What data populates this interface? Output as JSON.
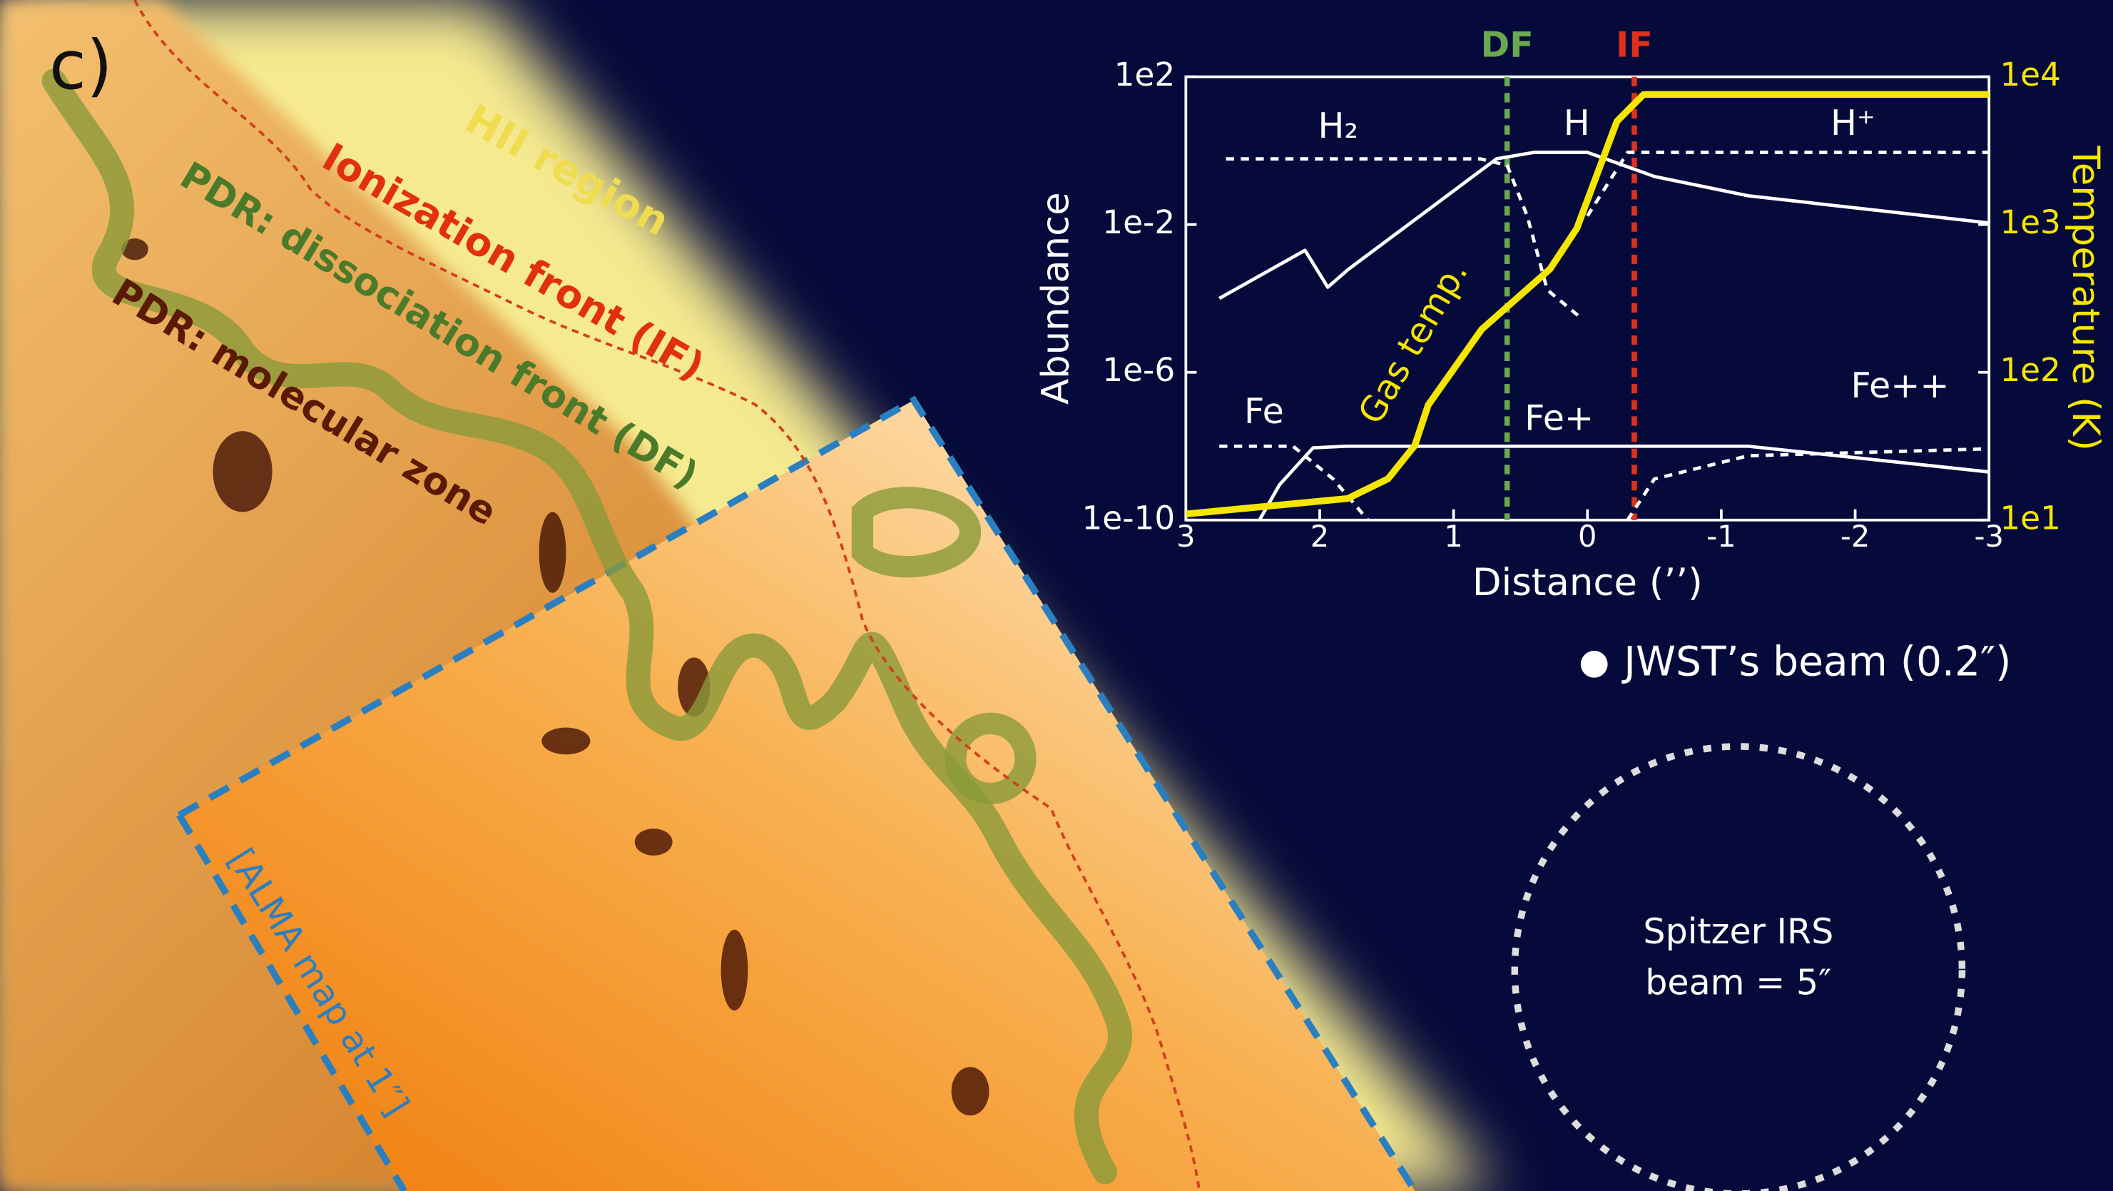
{
  "chart_data": {
    "type": "line",
    "x_label": "Distance (’’)",
    "y_label": "Abundance",
    "y2_label": "Temperature (K)",
    "xlim": [
      3,
      -3
    ],
    "xticks": [
      3,
      2,
      1,
      0,
      -1,
      -2,
      -3
    ],
    "ylim": [
      1e-10,
      100
    ],
    "ylog": true,
    "yticks": [
      {
        "value": 1e-10,
        "label": "1e-10"
      },
      {
        "value": 1e-06,
        "label": "1e-6"
      },
      {
        "value": 0.01,
        "label": "1e-2"
      },
      {
        "value": 100,
        "label": "1e2"
      }
    ],
    "y2lim": [
      10,
      10000
    ],
    "y2log": true,
    "y2ticks": [
      {
        "value": 10,
        "label": "1e1"
      },
      {
        "value": 100,
        "label": "1e2"
      },
      {
        "value": 1000,
        "label": "1e3"
      },
      {
        "value": 10000,
        "label": "1e4"
      }
    ],
    "vlines": [
      {
        "label": "DF",
        "x": 0.6,
        "color": "#6aa84f"
      },
      {
        "label": "IF",
        "x": -0.35,
        "color": "#e0301a"
      }
    ],
    "series": [
      {
        "name": "H₂",
        "color": "#ffffff",
        "dash": true,
        "x": [
          2.7,
          0.8,
          0.6,
          0.45,
          0.3,
          0.05
        ],
        "values": [
          0.6,
          0.6,
          0.4,
          0.017,
          0.00017,
          3e-05
        ]
      },
      {
        "name": "H",
        "color": "#ffffff",
        "dash": false,
        "x": [
          2.75,
          2.11,
          1.94,
          1.79,
          0.68,
          0.4,
          0,
          -0.5,
          -1.2,
          -3
        ],
        "values": [
          0.0001,
          0.002,
          0.0002,
          0.0006,
          0.6,
          0.9,
          0.9,
          0.2,
          0.06,
          0.011
        ]
      },
      {
        "name": "H⁺",
        "color": "#ffffff",
        "dash": true,
        "x": [
          0,
          -0.3,
          -3
        ],
        "values": [
          0.017,
          0.9,
          0.9
        ]
      },
      {
        "name": "Fe",
        "color": "#ffffff",
        "dash": true,
        "x": [
          2.75,
          2.2,
          1.9,
          1.64
        ],
        "values": [
          1e-08,
          1e-08,
          1.3e-09,
          1e-10
        ]
      },
      {
        "name": "Fe+",
        "color": "#ffffff",
        "dash": false,
        "x": [
          2.45,
          2.3,
          2.05,
          1.8,
          -1.2,
          -3
        ],
        "values": [
          1e-10,
          9e-10,
          9e-09,
          1e-08,
          1e-08,
          2e-09
        ]
      },
      {
        "name": "Fe++",
        "color": "#ffffff",
        "dash": true,
        "x": [
          -0.3,
          -0.5,
          -1.2,
          -3
        ],
        "values": [
          1e-10,
          1.3e-09,
          5.5e-09,
          8.5e-09
        ]
      },
      {
        "name": "Gas temp.",
        "color": "#f5e600",
        "dash": false,
        "axis": "y2",
        "x": [
          3,
          1.79,
          1.49,
          1.29,
          1.19,
          0.79,
          0.28,
          0.08,
          -0.22,
          -0.42,
          -3
        ],
        "values": [
          11,
          14,
          19,
          32,
          60,
          195,
          500,
          940,
          5000,
          7600,
          7600
        ]
      }
    ]
  },
  "annotations": {
    "panel_label": "c)",
    "hii_region": "HII region",
    "ionization_front": "Ionization front (IF)",
    "dissociation_front": "PDR: dissociation front (DF)",
    "molecular_zone": "PDR: molecular zone",
    "alma_map": "[ALMA map at 1″]",
    "jwst_beam": "JWST’s beam (0.2″)",
    "spitzer_beam": [
      "Spitzer IRS",
      "beam = 5″"
    ]
  }
}
